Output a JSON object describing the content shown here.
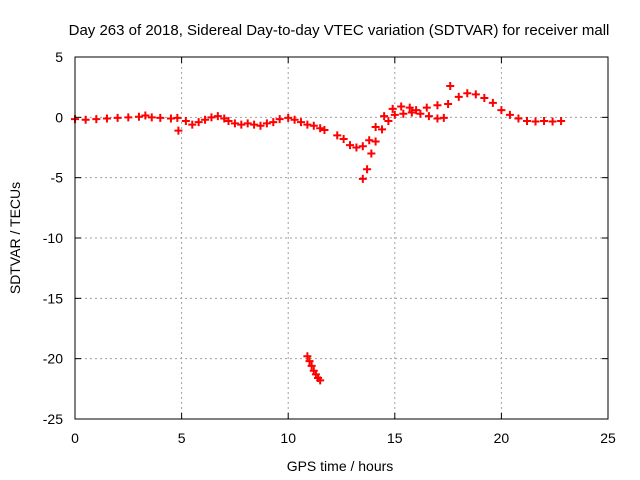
{
  "chart_data": {
    "type": "scatter",
    "title": "Day 263 of 2018, Sidereal Day-to-day VTEC variation (SDTVAR) for receiver mall",
    "xlabel": "GPS time / hours",
    "ylabel": "SDTVAR / TECUs",
    "xlim": [
      0,
      25
    ],
    "ylim": [
      -25,
      5
    ],
    "xticks": [
      0,
      5,
      10,
      15,
      20,
      25
    ],
    "yticks": [
      -25,
      -20,
      -15,
      -10,
      -5,
      0,
      5
    ],
    "grid": true,
    "marker": "plus",
    "color": "#ff0000",
    "series": [
      {
        "name": "SDTVAR",
        "points": [
          [
            0.0,
            -0.15
          ],
          [
            0.5,
            -0.2
          ],
          [
            1.0,
            -0.15
          ],
          [
            1.5,
            -0.1
          ],
          [
            2.0,
            -0.05
          ],
          [
            2.5,
            0.0
          ],
          [
            3.0,
            0.05
          ],
          [
            3.3,
            0.15
          ],
          [
            3.6,
            0.0
          ],
          [
            4.0,
            -0.05
          ],
          [
            4.5,
            -0.1
          ],
          [
            4.8,
            -0.05
          ],
          [
            4.85,
            -1.1
          ],
          [
            5.2,
            -0.3
          ],
          [
            5.5,
            -0.6
          ],
          [
            5.8,
            -0.4
          ],
          [
            6.1,
            -0.2
          ],
          [
            6.4,
            0.0
          ],
          [
            6.7,
            0.1
          ],
          [
            7.0,
            -0.1
          ],
          [
            7.2,
            -0.3
          ],
          [
            7.5,
            -0.5
          ],
          [
            7.8,
            -0.6
          ],
          [
            8.1,
            -0.5
          ],
          [
            8.4,
            -0.6
          ],
          [
            8.7,
            -0.7
          ],
          [
            9.0,
            -0.5
          ],
          [
            9.3,
            -0.4
          ],
          [
            9.6,
            -0.15
          ],
          [
            10.0,
            -0.05
          ],
          [
            10.3,
            -0.2
          ],
          [
            10.6,
            -0.4
          ],
          [
            10.9,
            -0.6
          ],
          [
            11.2,
            -0.7
          ],
          [
            11.5,
            -0.9
          ],
          [
            11.7,
            -1.05
          ],
          [
            12.3,
            -1.5
          ],
          [
            12.6,
            -1.8
          ],
          [
            12.9,
            -2.3
          ],
          [
            13.2,
            -2.5
          ],
          [
            13.5,
            -2.4
          ],
          [
            13.8,
            -1.9
          ],
          [
            14.1,
            -0.8
          ],
          [
            14.5,
            0.1
          ],
          [
            14.9,
            0.7
          ],
          [
            15.3,
            0.9
          ],
          [
            15.7,
            0.8
          ],
          [
            16.0,
            0.6
          ],
          [
            13.5,
            -5.1
          ],
          [
            13.7,
            -4.3
          ],
          [
            13.9,
            -3.0
          ],
          [
            14.1,
            -2.0
          ],
          [
            14.4,
            -1.0
          ],
          [
            14.7,
            -0.3
          ],
          [
            15.0,
            0.2
          ],
          [
            15.4,
            0.3
          ],
          [
            15.8,
            0.4
          ],
          [
            16.2,
            0.3
          ],
          [
            16.6,
            0.1
          ],
          [
            17.0,
            -0.1
          ],
          [
            17.3,
            -0.05
          ],
          [
            16.5,
            0.8
          ],
          [
            17.0,
            1.0
          ],
          [
            17.5,
            1.1
          ],
          [
            17.6,
            2.6
          ],
          [
            18.0,
            1.7
          ],
          [
            18.4,
            2.0
          ],
          [
            18.8,
            1.9
          ],
          [
            19.2,
            1.6
          ],
          [
            19.6,
            1.2
          ],
          [
            20.0,
            0.6
          ],
          [
            20.4,
            0.2
          ],
          [
            20.8,
            -0.1
          ],
          [
            21.2,
            -0.3
          ],
          [
            21.6,
            -0.35
          ],
          [
            22.0,
            -0.3
          ],
          [
            22.4,
            -0.35
          ],
          [
            22.8,
            -0.3
          ],
          [
            10.9,
            -19.8
          ],
          [
            11.0,
            -20.2
          ],
          [
            11.1,
            -20.6
          ],
          [
            11.2,
            -21.0
          ],
          [
            11.3,
            -21.3
          ],
          [
            11.4,
            -21.6
          ],
          [
            11.5,
            -21.8
          ]
        ]
      }
    ]
  }
}
